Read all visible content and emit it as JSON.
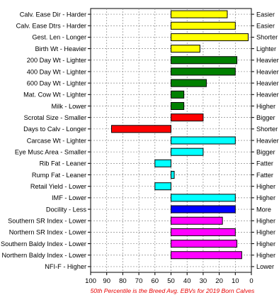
{
  "chart_data": {
    "type": "bar",
    "orientation": "horizontal",
    "categories": [
      "Calv. Ease Dir - Harder",
      "Calv. Ease Dtrs - Harder",
      "Gest. Len - Longer",
      "Birth Wt - Heavier",
      "200 Day Wt - Lighter",
      "400 Day Wt - Lighter",
      "600 Day Wt - Lighter",
      "Mat. Cow Wt - Lighter",
      "Milk - Lower",
      "Scrotal Size - Smaller",
      "Days to Calv - Longer",
      "Carcase Wt - Lighter",
      "Eye Musc Area - Smaller",
      "Rib Fat - Leaner",
      "Rump Fat - Leaner",
      "Retail Yield - Lower",
      "IMF - Lower",
      "Docility - Less",
      "Southern SR Index - Lower",
      "Northern SR Index - Lower",
      "Southern Baldy Index - Lower",
      "Northern Baldy Index - Lower",
      "NFI-F - Higher"
    ],
    "right_labels": [
      "Easier",
      "Easier",
      "Shorter",
      "Lighter",
      "Heavier",
      "Heavier",
      "Heavier",
      "Heavier",
      "Higher",
      "Bigger",
      "Shorter",
      "Heavier",
      "Bigger",
      "Fatter",
      "Fatter",
      "Higher",
      "Higher",
      "More",
      "Higher",
      "Higher",
      "Higher",
      "Higher",
      "Lower"
    ],
    "values": [
      15,
      10,
      2,
      32,
      9,
      10,
      28,
      42,
      42,
      30,
      87,
      10,
      30,
      60,
      48,
      60,
      10,
      10,
      18,
      10,
      9,
      6,
      null
    ],
    "colors": [
      "#ffff00",
      "#ffff00",
      "#ffff00",
      "#ffff00",
      "#008000",
      "#008000",
      "#008000",
      "#008000",
      "#008000",
      "#ff0000",
      "#ff0000",
      "#00ffff",
      "#00ffff",
      "#00ffff",
      "#00ffff",
      "#00ffff",
      "#00ffff",
      "#0000ff",
      "#ff00ff",
      "#ff00ff",
      "#ff00ff",
      "#ff00ff",
      "#000000"
    ],
    "baseline": 50,
    "xlim": [
      100,
      0
    ],
    "x_reversed": true,
    "xticks": [
      100,
      90,
      80,
      70,
      60,
      50,
      40,
      30,
      20,
      10,
      0
    ],
    "grid": true,
    "title": "",
    "xlabel": "",
    "ylabel": "",
    "footnote": "50th Percentile is the Breed Avg. EBVs for 2019 Born Calves"
  }
}
